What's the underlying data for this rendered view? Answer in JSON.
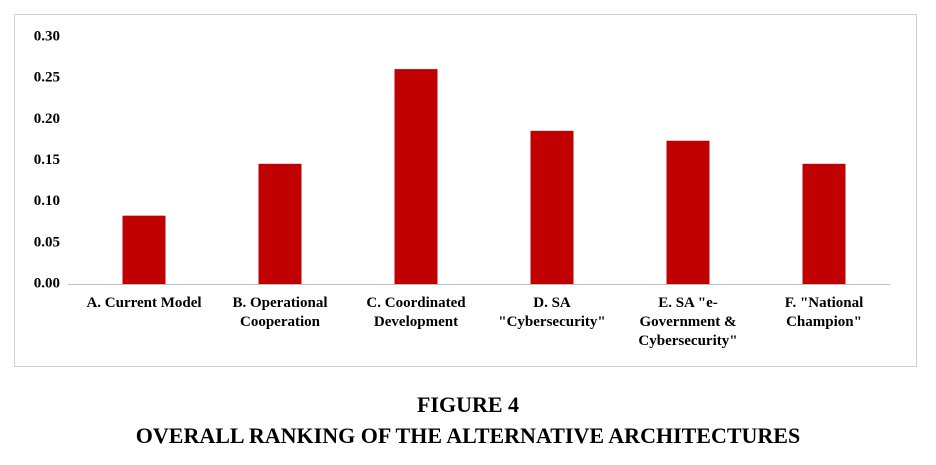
{
  "chart_data": {
    "type": "bar",
    "figure_label": "FIGURE 4",
    "title": "OVERALL RANKING OF THE ALTERNATIVE ARCHITECTURES",
    "categories": [
      "A. Current Model",
      "B. Operational Cooperation",
      "C. Coordinated Development",
      "D. SA \"Cybersecurity\"",
      "E. SA \"e-Government & Cybersecurity\"",
      "F. \"National Champion\""
    ],
    "values": [
      0.083,
      0.146,
      0.261,
      0.186,
      0.174,
      0.146
    ],
    "color": "#c00000",
    "ylim": [
      0,
      0.3
    ],
    "yticks": [
      {
        "value": 0,
        "label": "0.00"
      },
      {
        "value": 0.05,
        "label": "0.05"
      },
      {
        "value": 0.1,
        "label": "0.10"
      },
      {
        "value": 0.15,
        "label": "0.15"
      },
      {
        "value": 0.2,
        "label": "0.20"
      },
      {
        "value": 0.25,
        "label": "0.25"
      },
      {
        "value": 0.3,
        "label": "0.30"
      }
    ],
    "grid": false
  }
}
